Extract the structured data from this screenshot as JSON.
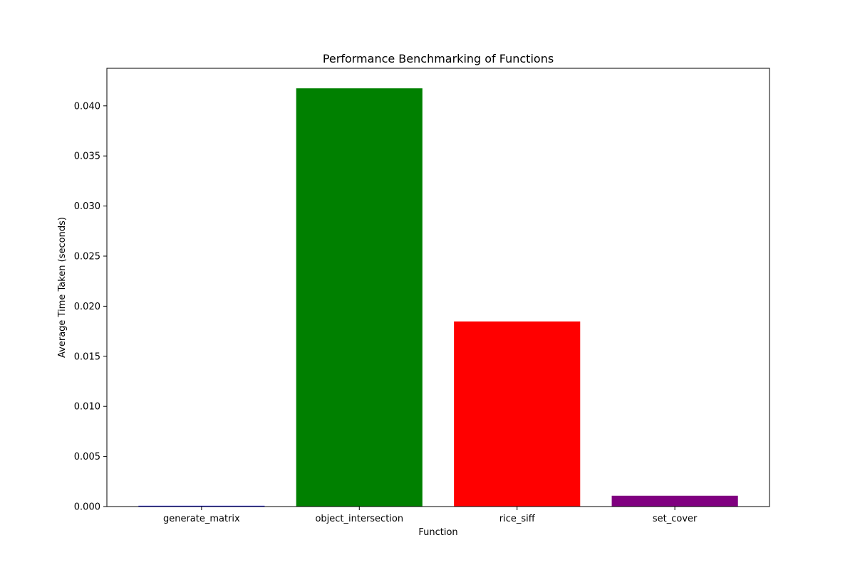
{
  "chart_data": {
    "type": "bar",
    "title": "Performance Benchmarking of Functions",
    "xlabel": "Function",
    "ylabel": "Average Time Taken (seconds)",
    "categories": [
      "generate_matrix",
      "object_intersection",
      "rice_siff",
      "set_cover"
    ],
    "values": [
      8e-05,
      0.04175,
      0.01848,
      0.00108
    ],
    "colors": [
      "#0000ff",
      "#008000",
      "#ff0000",
      "#800080"
    ],
    "ylim": [
      0,
      0.04375
    ],
    "yticks": [
      0.0,
      0.005,
      0.01,
      0.015,
      0.02,
      0.025,
      0.03,
      0.035,
      0.04
    ],
    "ytick_labels": [
      "0.000",
      "0.005",
      "0.010",
      "0.015",
      "0.020",
      "0.025",
      "0.030",
      "0.035",
      "0.040"
    ],
    "grid": false,
    "legend": false
  }
}
